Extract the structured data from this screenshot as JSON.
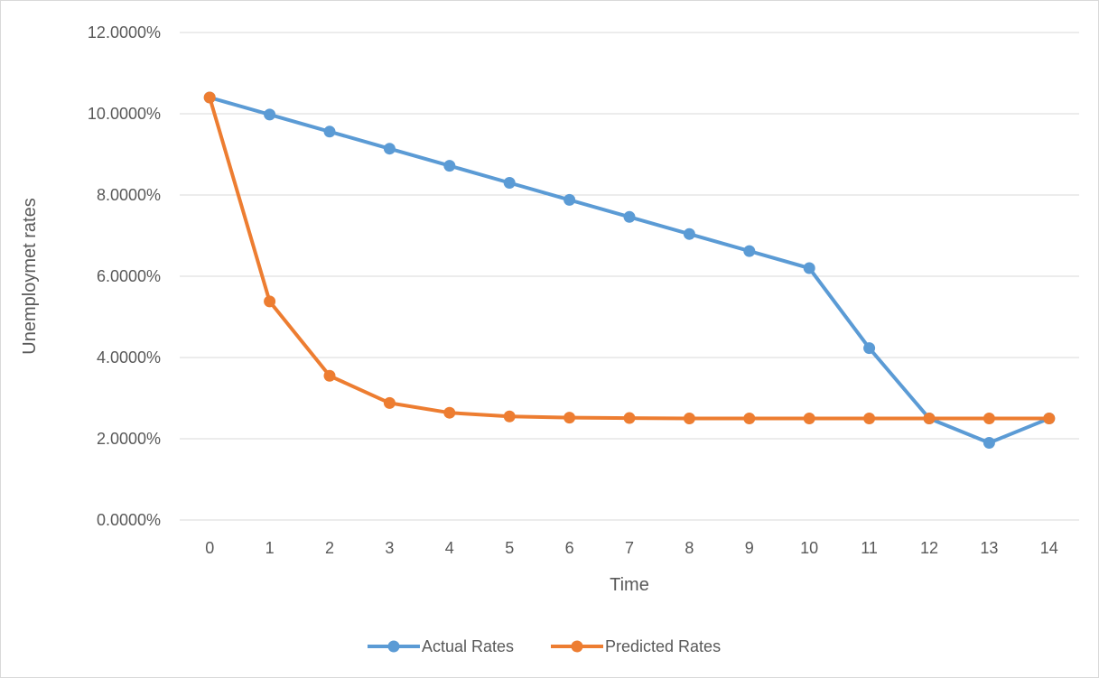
{
  "chart_data": {
    "type": "line",
    "title": "",
    "xlabel": "Time",
    "ylabel": "Unemploymet rates",
    "x": [
      0,
      1,
      2,
      3,
      4,
      5,
      6,
      7,
      8,
      9,
      10,
      11,
      12,
      13,
      14
    ],
    "x_tick_labels": [
      "0",
      "1",
      "2",
      "3",
      "4",
      "5",
      "6",
      "7",
      "8",
      "9",
      "10",
      "11",
      "12",
      "13",
      "14"
    ],
    "ylim": [
      0,
      12
    ],
    "y_ticks": [
      0,
      2,
      4,
      6,
      8,
      10,
      12
    ],
    "y_tick_labels": [
      "0.0000%",
      "2.0000%",
      "4.0000%",
      "6.0000%",
      "8.0000%",
      "10.0000%",
      "12.0000%"
    ],
    "grid": "horizontal",
    "legend_position": "bottom",
    "series": [
      {
        "name": "Actual Rates",
        "color": "#5b9bd5",
        "values": [
          10.4,
          9.98,
          9.56,
          9.14,
          8.72,
          8.3,
          7.88,
          7.46,
          7.04,
          6.62,
          6.2,
          4.23,
          2.5,
          1.9,
          2.5
        ]
      },
      {
        "name": "Predicted Rates",
        "color": "#ed7d31",
        "values": [
          10.4,
          5.38,
          3.55,
          2.88,
          2.64,
          2.55,
          2.52,
          2.51,
          2.5,
          2.5,
          2.5,
          2.5,
          2.5,
          2.5,
          2.5
        ]
      }
    ]
  }
}
